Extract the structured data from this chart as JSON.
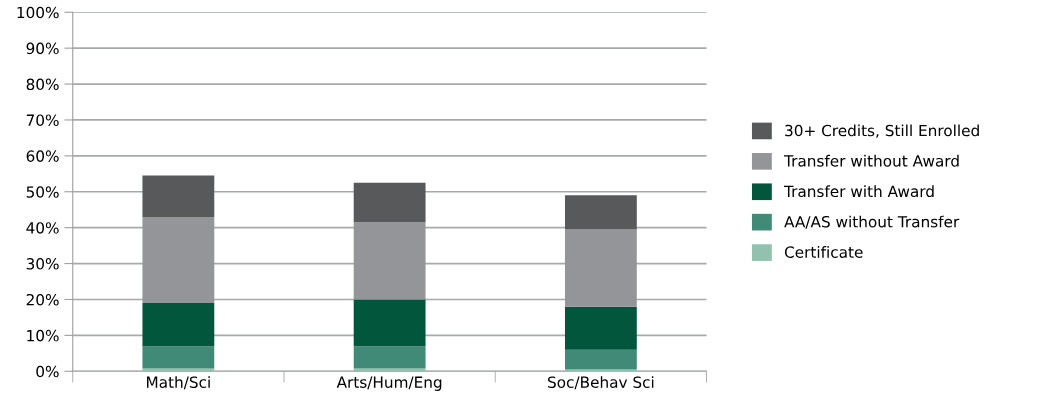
{
  "chart_data": {
    "type": "bar",
    "stacked": true,
    "categories": [
      "Math/Sci",
      "Arts/Hum/Eng",
      "Soc/Behav Sci"
    ],
    "series": [
      {
        "name": "Certificate",
        "color": "#93c1b0",
        "values": [
          0.8,
          0.8,
          0.5
        ]
      },
      {
        "name": "AA/AS without Transfer",
        "color": "#428a78",
        "values": [
          6.2,
          6.2,
          5.5
        ]
      },
      {
        "name": "Transfer with Award",
        "color": "#02563b",
        "values": [
          12,
          13,
          12
        ]
      },
      {
        "name": "Transfer without Award",
        "color": "#939598",
        "values": [
          24,
          21.5,
          21.5
        ]
      },
      {
        "name": "30+ Credits, Still Enrolled",
        "color": "#58595b",
        "values": [
          11.5,
          11,
          9.5
        ]
      }
    ],
    "ylim": [
      0,
      100
    ],
    "yticks": [
      {
        "value": 0,
        "label": "0%"
      },
      {
        "value": 10,
        "label": "10%"
      },
      {
        "value": 20,
        "label": "20%"
      },
      {
        "value": 30,
        "label": "30%"
      },
      {
        "value": 40,
        "label": "40%"
      },
      {
        "value": 50,
        "label": "50%"
      },
      {
        "value": 60,
        "label": "60%"
      },
      {
        "value": 70,
        "label": "70%"
      },
      {
        "value": 80,
        "label": "80%"
      },
      {
        "value": 90,
        "label": "90%"
      },
      {
        "value": 100,
        "label": "100%"
      }
    ],
    "grid": "y",
    "legend": "right"
  }
}
